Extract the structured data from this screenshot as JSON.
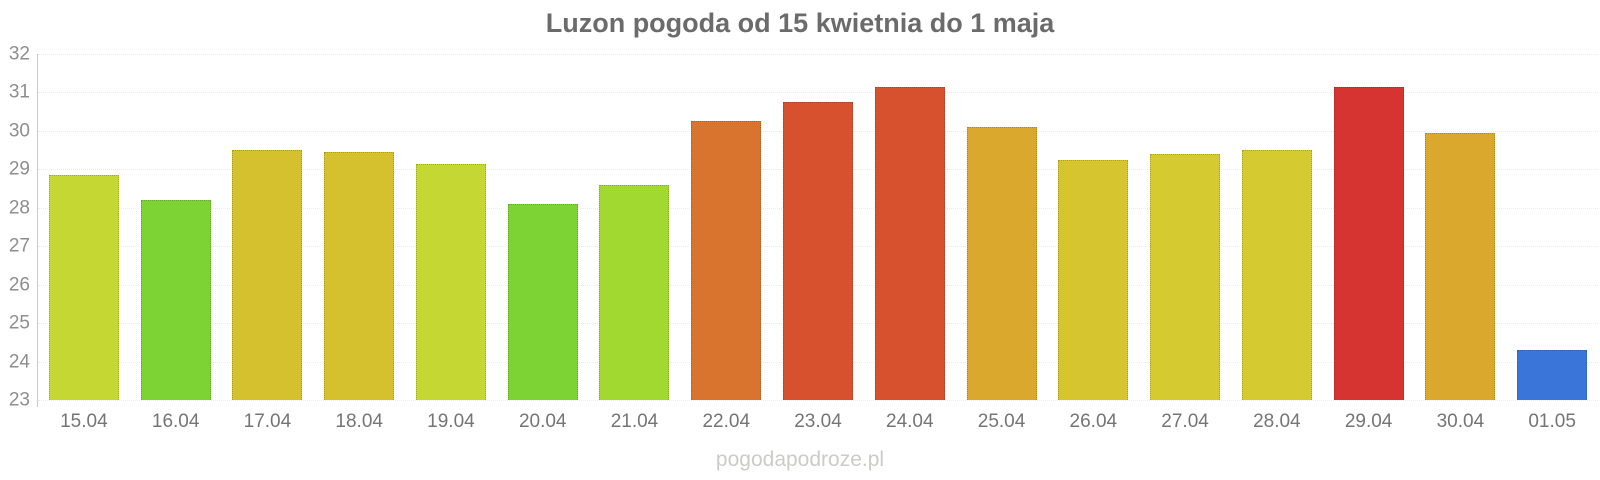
{
  "chart_data": {
    "type": "bar",
    "title": "Luzon pogoda od 15 kwietnia do 1 maja",
    "categories": [
      "15.04",
      "16.04",
      "17.04",
      "18.04",
      "19.04",
      "20.04",
      "21.04",
      "22.04",
      "23.04",
      "24.04",
      "25.04",
      "26.04",
      "27.04",
      "28.04",
      "29.04",
      "30.04",
      "01.05"
    ],
    "values": [
      28.85,
      28.2,
      29.5,
      29.45,
      29.15,
      28.1,
      28.6,
      30.25,
      30.75,
      31.15,
      30.1,
      29.25,
      29.4,
      29.5,
      31.15,
      29.95,
      24.3
    ],
    "bar_colors": [
      "#c4d733",
      "#7ed334",
      "#d5c02e",
      "#d5c02e",
      "#c4d733",
      "#7ed334",
      "#a2d931",
      "#d9742f",
      "#d8512e",
      "#d8512e",
      "#dba82e",
      "#d7c52f",
      "#d6ca31",
      "#d6ca31",
      "#d63430",
      "#dba82e",
      "#3a75da"
    ],
    "xlabel": "",
    "ylabel": "",
    "ylim": [
      23,
      32
    ],
    "yticks": [
      32,
      31,
      30,
      29,
      28,
      27,
      26,
      25,
      24,
      23
    ],
    "grid": "horizontal-dotted",
    "legend": "none"
  },
  "footer": {
    "watermark": "pogodapodroze.pl"
  },
  "colors": {
    "background": "#ffffff",
    "title_text": "#6b6b6b",
    "y_label_text": "#8e8e8e",
    "x_label_text": "#757575",
    "grid_line": "#ececec",
    "axis_line": "#cccccc",
    "watermark_text": "#cbcbc7"
  }
}
